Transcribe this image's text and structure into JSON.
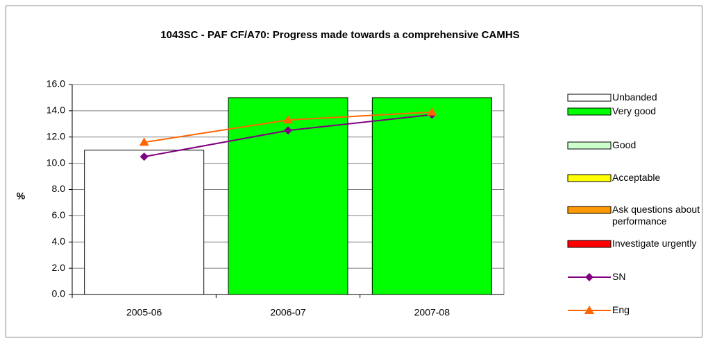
{
  "chart_data": {
    "type": "bar_line",
    "title": "1043SC - PAF CF/A70: Progress made towards a comprehensive CAMHS",
    "y_label": "%",
    "categories": [
      "2005-06",
      "2006-07",
      "2007-08"
    ],
    "ylim": [
      0,
      16
    ],
    "yticks": [
      {
        "value": 0,
        "label": "0.0"
      },
      {
        "value": 2,
        "label": "2.0"
      },
      {
        "value": 4,
        "label": "4.0"
      },
      {
        "value": 6,
        "label": "6.0"
      },
      {
        "value": 8,
        "label": "8.0"
      },
      {
        "value": 10,
        "label": "10.0"
      },
      {
        "value": 12,
        "label": "12.0"
      },
      {
        "value": 14,
        "label": "14.0"
      },
      {
        "value": 16,
        "label": "16.0"
      }
    ],
    "grid": true,
    "series": [
      {
        "name": "Unbanded",
        "type": "bar",
        "color": "#ffffff",
        "values": [
          11,
          null,
          null
        ]
      },
      {
        "name": "Very good",
        "type": "bar",
        "color": "#00ff00",
        "values": [
          null,
          15,
          15
        ]
      },
      {
        "name": "Good",
        "type": "bar",
        "color": "#ccffcc",
        "values": [
          null,
          null,
          null
        ]
      },
      {
        "name": "Acceptable",
        "type": "bar",
        "color": "#ffff00",
        "values": [
          null,
          null,
          null
        ]
      },
      {
        "name": "Ask questions about performance",
        "type": "bar",
        "color": "#ff9900",
        "values": [
          null,
          null,
          null
        ]
      },
      {
        "name": "Investigate urgently",
        "type": "bar",
        "color": "#ff0000",
        "values": [
          null,
          null,
          null
        ]
      },
      {
        "name": "SN",
        "type": "line",
        "marker": "diamond",
        "color": "#800080",
        "values": [
          10.5,
          12.5,
          13.7
        ]
      },
      {
        "name": "Eng",
        "type": "line",
        "marker": "triangle",
        "color": "#ff6600",
        "values": [
          11.6,
          13.3,
          13.9
        ]
      }
    ]
  }
}
